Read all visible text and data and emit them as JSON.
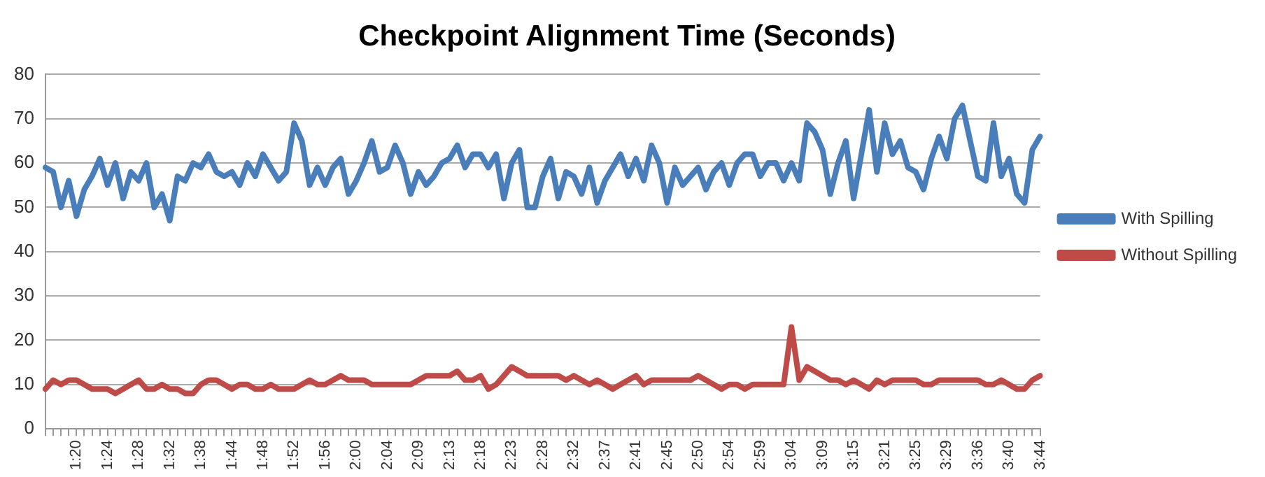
{
  "chart_data": {
    "type": "line",
    "title": "Checkpoint Alignment Time (Seconds)",
    "categories": [
      null,
      null,
      null,
      null,
      "1:20",
      null,
      null,
      null,
      "1:24",
      null,
      null,
      null,
      "1:28",
      null,
      null,
      null,
      "1:32",
      null,
      null,
      null,
      "1:38",
      null,
      null,
      null,
      "1:44",
      null,
      null,
      null,
      "1:48",
      null,
      null,
      null,
      "1:52",
      null,
      null,
      null,
      "1:56",
      null,
      null,
      null,
      "2:00",
      null,
      null,
      null,
      "2:04",
      null,
      null,
      null,
      "2:09",
      null,
      null,
      null,
      "2:13",
      null,
      null,
      null,
      "2:18",
      null,
      null,
      null,
      "2:23",
      null,
      null,
      null,
      "2:28",
      null,
      null,
      null,
      "2:32",
      null,
      null,
      null,
      "2:37",
      null,
      null,
      null,
      "2:41",
      null,
      null,
      null,
      "2:45",
      null,
      null,
      null,
      "2:50",
      null,
      null,
      null,
      "2:54",
      null,
      null,
      null,
      "2:59",
      null,
      null,
      null,
      "3:04",
      null,
      null,
      null,
      "3:09",
      null,
      null,
      null,
      "3:15",
      null,
      null,
      null,
      "3:21",
      null,
      null,
      null,
      "3:25",
      null,
      null,
      null,
      "3:29",
      null,
      null,
      null,
      "3:36",
      null,
      null,
      null,
      "3:40",
      null,
      null,
      null,
      "3:44"
    ],
    "series": [
      {
        "name": "With Spilling",
        "color": "#4a7ebb",
        "values": [
          59,
          58,
          50,
          56,
          48,
          54,
          57,
          61,
          55,
          60,
          52,
          58,
          56,
          60,
          50,
          53,
          47,
          57,
          56,
          60,
          59,
          62,
          58,
          57,
          58,
          55,
          60,
          57,
          62,
          59,
          56,
          58,
          69,
          65,
          55,
          59,
          55,
          59,
          61,
          53,
          56,
          60,
          65,
          58,
          59,
          64,
          60,
          53,
          58,
          55,
          57,
          60,
          61,
          64,
          59,
          62,
          62,
          59,
          62,
          52,
          60,
          63,
          50,
          50,
          57,
          61,
          52,
          58,
          57,
          53,
          59,
          51,
          56,
          59,
          62,
          57,
          61,
          56,
          64,
          60,
          51,
          59,
          55,
          57,
          59,
          54,
          58,
          60,
          55,
          60,
          62,
          62,
          57,
          60,
          60,
          56,
          60,
          56,
          69,
          67,
          63,
          53,
          60,
          65,
          52,
          62,
          72,
          58,
          69,
          62,
          65,
          59,
          58,
          54,
          61,
          66,
          61,
          70,
          73,
          65,
          57,
          56,
          69,
          57,
          61,
          53,
          51,
          63,
          66
        ]
      },
      {
        "name": "Without Spilling",
        "color": "#be4b48",
        "values": [
          9,
          11,
          10,
          11,
          11,
          10,
          9,
          9,
          9,
          8,
          9,
          10,
          11,
          9,
          9,
          10,
          9,
          9,
          8,
          8,
          10,
          11,
          11,
          10,
          9,
          10,
          10,
          9,
          9,
          10,
          9,
          9,
          9,
          10,
          11,
          10,
          10,
          11,
          12,
          11,
          11,
          11,
          10,
          10,
          10,
          10,
          10,
          10,
          11,
          12,
          12,
          12,
          12,
          13,
          11,
          11,
          12,
          9,
          10,
          12,
          14,
          13,
          12,
          12,
          12,
          12,
          12,
          11,
          12,
          11,
          10,
          11,
          10,
          9,
          10,
          11,
          12,
          10,
          11,
          11,
          11,
          11,
          11,
          11,
          12,
          11,
          10,
          9,
          10,
          10,
          9,
          10,
          10,
          10,
          10,
          10,
          23,
          11,
          14,
          13,
          12,
          11,
          11,
          10,
          11,
          10,
          9,
          11,
          10,
          11,
          11,
          11,
          11,
          10,
          10,
          11,
          11,
          11,
          11,
          11,
          11,
          10,
          10,
          11,
          10,
          9,
          9,
          11,
          12
        ]
      }
    ],
    "ylim": [
      0,
      80
    ],
    "yticks": [
      0,
      10,
      20,
      30,
      40,
      50,
      60,
      70,
      80
    ],
    "grid": "y",
    "legend": "right",
    "marker": "none",
    "line_style": "solid"
  }
}
